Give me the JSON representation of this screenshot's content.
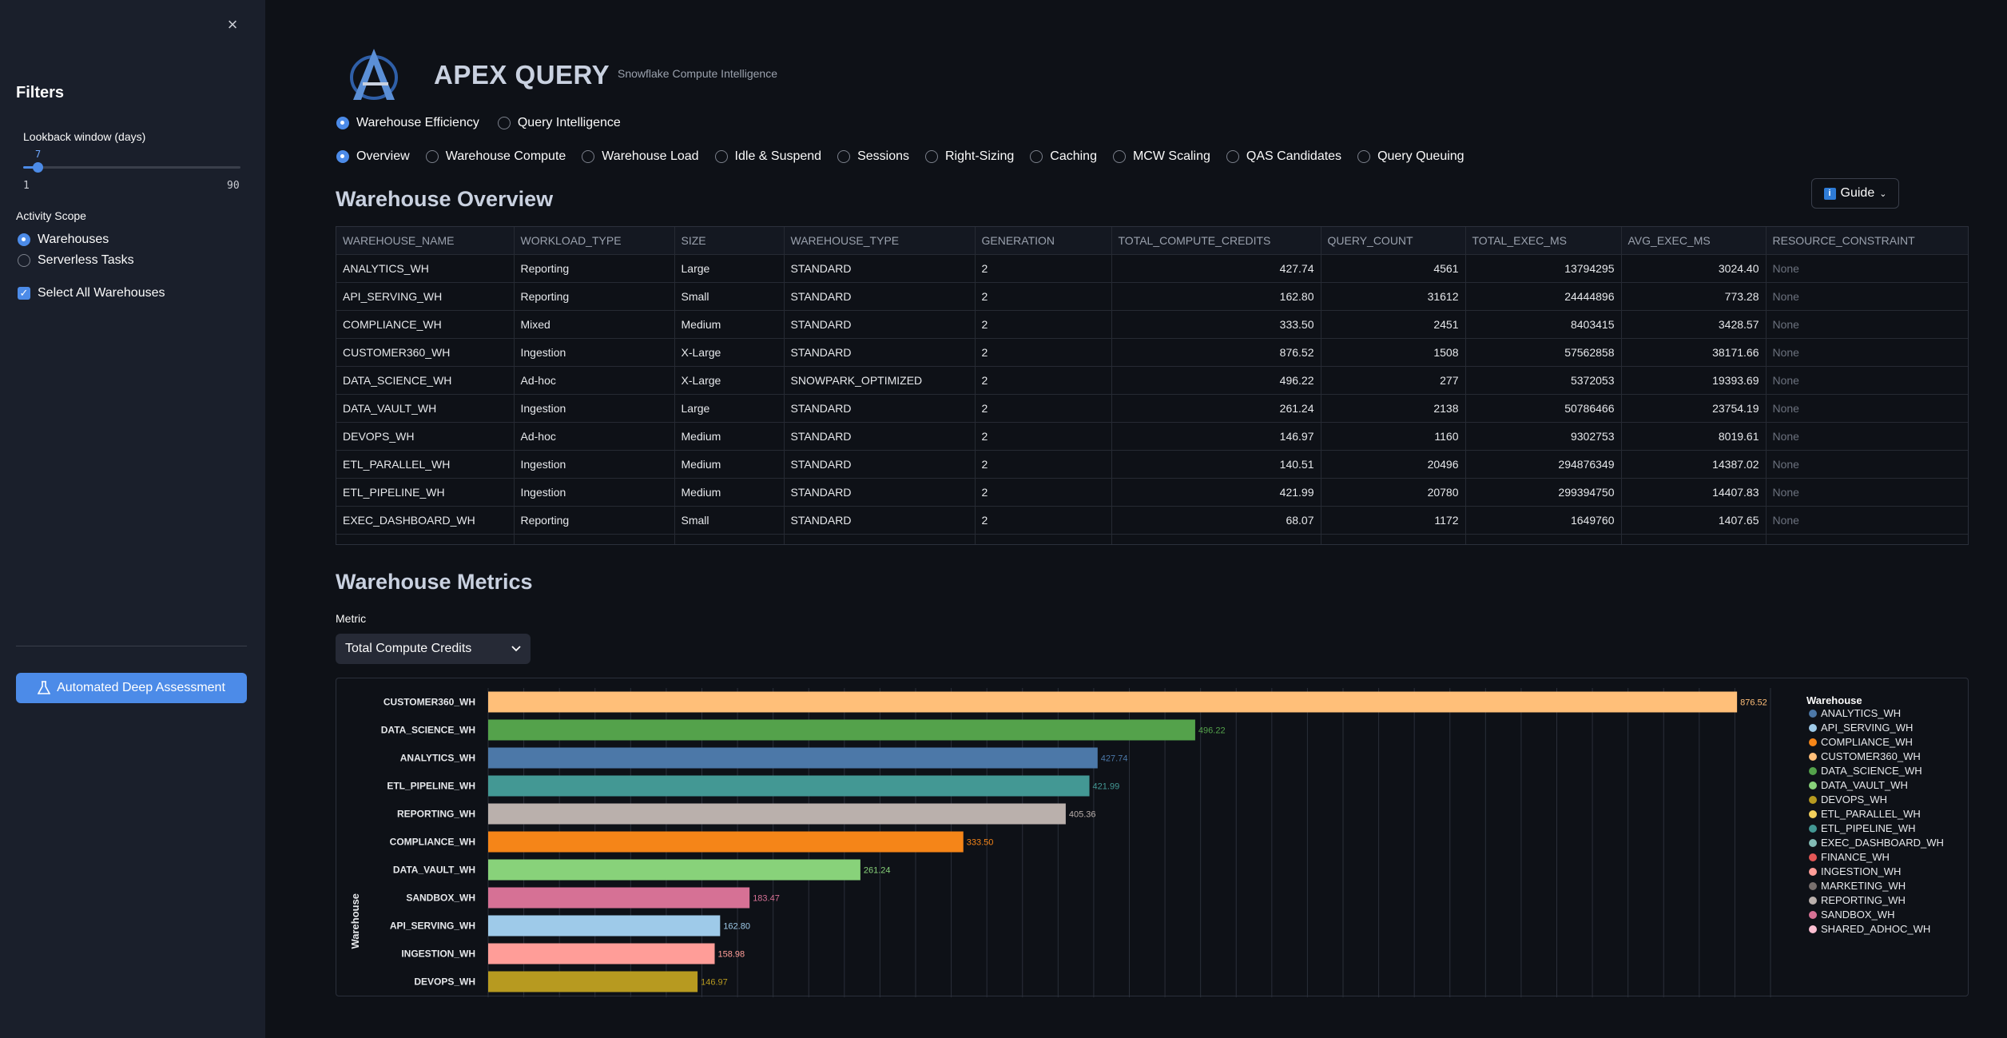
{
  "sidebar": {
    "close_icon": "×",
    "filters_title": "Filters",
    "lookback": {
      "label": "Lookback window (days)",
      "value": "7",
      "min": "1",
      "max": "90",
      "fraction": 0.067
    },
    "activity_scope": {
      "label": "Activity Scope",
      "options": [
        {
          "label": "Warehouses",
          "selected": true
        },
        {
          "label": "Serverless Tasks",
          "selected": false
        }
      ]
    },
    "select_all": {
      "label": "Select All Warehouses",
      "checked": true
    },
    "deep_assessment_button": "Automated Deep Assessment"
  },
  "header": {
    "title": "APEX QUERY",
    "subtitle": "Snowflake Compute Intelligence"
  },
  "main_tabs": [
    {
      "label": "Warehouse Efficiency",
      "selected": true
    },
    {
      "label": "Query Intelligence",
      "selected": false
    }
  ],
  "sub_tabs": [
    {
      "label": "Overview",
      "selected": true
    },
    {
      "label": "Warehouse Compute",
      "selected": false
    },
    {
      "label": "Warehouse Load",
      "selected": false
    },
    {
      "label": "Idle & Suspend",
      "selected": false
    },
    {
      "label": "Sessions",
      "selected": false
    },
    {
      "label": "Right-Sizing",
      "selected": false
    },
    {
      "label": "Caching",
      "selected": false
    },
    {
      "label": "MCW Scaling",
      "selected": false
    },
    {
      "label": "QAS Candidates",
      "selected": false
    },
    {
      "label": "Query Queuing",
      "selected": false
    }
  ],
  "overview": {
    "title": "Warehouse Overview",
    "guide_label": "Guide",
    "guide_icon": "i",
    "columns": [
      "WAREHOUSE_NAME",
      "WORKLOAD_TYPE",
      "SIZE",
      "WAREHOUSE_TYPE",
      "GENERATION",
      "TOTAL_COMPUTE_CREDITS",
      "QUERY_COUNT",
      "TOTAL_EXEC_MS",
      "AVG_EXEC_MS",
      "RESOURCE_CONSTRAINT"
    ],
    "rows": [
      [
        "ANALYTICS_WH",
        "Reporting",
        "Large",
        "STANDARD",
        "2",
        "427.74",
        "4561",
        "13794295",
        "3024.40",
        "None"
      ],
      [
        "API_SERVING_WH",
        "Reporting",
        "Small",
        "STANDARD",
        "2",
        "162.80",
        "31612",
        "24444896",
        "773.28",
        "None"
      ],
      [
        "COMPLIANCE_WH",
        "Mixed",
        "Medium",
        "STANDARD",
        "2",
        "333.50",
        "2451",
        "8403415",
        "3428.57",
        "None"
      ],
      [
        "CUSTOMER360_WH",
        "Ingestion",
        "X-Large",
        "STANDARD",
        "2",
        "876.52",
        "1508",
        "57562858",
        "38171.66",
        "None"
      ],
      [
        "DATA_SCIENCE_WH",
        "Ad-hoc",
        "X-Large",
        "SNOWPARK_OPTIMIZED",
        "2",
        "496.22",
        "277",
        "5372053",
        "19393.69",
        "None"
      ],
      [
        "DATA_VAULT_WH",
        "Ingestion",
        "Large",
        "STANDARD",
        "2",
        "261.24",
        "2138",
        "50786466",
        "23754.19",
        "None"
      ],
      [
        "DEVOPS_WH",
        "Ad-hoc",
        "Medium",
        "STANDARD",
        "2",
        "146.97",
        "1160",
        "9302753",
        "8019.61",
        "None"
      ],
      [
        "ETL_PARALLEL_WH",
        "Ingestion",
        "Medium",
        "STANDARD",
        "2",
        "140.51",
        "20496",
        "294876349",
        "14387.02",
        "None"
      ],
      [
        "ETL_PIPELINE_WH",
        "Ingestion",
        "Medium",
        "STANDARD",
        "2",
        "421.99",
        "20780",
        "299394750",
        "14407.83",
        "None"
      ],
      [
        "EXEC_DASHBOARD_WH",
        "Reporting",
        "Small",
        "STANDARD",
        "2",
        "68.07",
        "1172",
        "1649760",
        "1407.65",
        "None"
      ]
    ]
  },
  "metrics": {
    "title": "Warehouse Metrics",
    "metric_label": "Metric",
    "selected_metric": "Total Compute Credits",
    "chevron_icon": "chevron-down-icon"
  },
  "chart_data": {
    "type": "bar",
    "orientation": "horizontal",
    "ylabel": "Warehouse",
    "xlim": [
      0,
      900
    ],
    "grid": true,
    "legend_title": "Warehouse",
    "legend_position": "right",
    "bars": [
      {
        "category": "CUSTOMER360_WH",
        "value": 876.52,
        "label": "876.52",
        "color": "#ffbf79"
      },
      {
        "category": "DATA_SCIENCE_WH",
        "value": 496.22,
        "label": "496.22",
        "color": "#54a24b"
      },
      {
        "category": "ANALYTICS_WH",
        "value": 427.74,
        "label": "427.74",
        "color": "#4c78a8"
      },
      {
        "category": "ETL_PIPELINE_WH",
        "value": 421.99,
        "label": "421.99",
        "color": "#439894"
      },
      {
        "category": "REPORTING_WH",
        "value": 405.36,
        "label": "405.36",
        "color": "#bab0ac"
      },
      {
        "category": "COMPLIANCE_WH",
        "value": 333.5,
        "label": "333.50",
        "color": "#f58518"
      },
      {
        "category": "DATA_VAULT_WH",
        "value": 261.24,
        "label": "261.24",
        "color": "#88d27a"
      },
      {
        "category": "SANDBOX_WH",
        "value": 183.47,
        "label": "183.47",
        "color": "#d67195"
      },
      {
        "category": "API_SERVING_WH",
        "value": 162.8,
        "label": "162.80",
        "color": "#9ecae9"
      },
      {
        "category": "INGESTION_WH",
        "value": 158.98,
        "label": "158.98",
        "color": "#ff9d98"
      },
      {
        "category": "DEVOPS_WH",
        "value": 146.97,
        "label": "146.97",
        "color": "#b79a20"
      }
    ],
    "legend": [
      {
        "name": "ANALYTICS_WH",
        "color": "#4c78a8"
      },
      {
        "name": "API_SERVING_WH",
        "color": "#9ecae9"
      },
      {
        "name": "COMPLIANCE_WH",
        "color": "#f58518"
      },
      {
        "name": "CUSTOMER360_WH",
        "color": "#ffbf79"
      },
      {
        "name": "DATA_SCIENCE_WH",
        "color": "#54a24b"
      },
      {
        "name": "DATA_VAULT_WH",
        "color": "#88d27a"
      },
      {
        "name": "DEVOPS_WH",
        "color": "#b79a20"
      },
      {
        "name": "ETL_PARALLEL_WH",
        "color": "#f2cf5b"
      },
      {
        "name": "ETL_PIPELINE_WH",
        "color": "#439894"
      },
      {
        "name": "EXEC_DASHBOARD_WH",
        "color": "#83bcb6"
      },
      {
        "name": "FINANCE_WH",
        "color": "#e45756"
      },
      {
        "name": "INGESTION_WH",
        "color": "#ff9d98"
      },
      {
        "name": "MARKETING_WH",
        "color": "#79706e"
      },
      {
        "name": "REPORTING_WH",
        "color": "#bab0ac"
      },
      {
        "name": "SANDBOX_WH",
        "color": "#d67195"
      },
      {
        "name": "SHARED_ADHOC_WH",
        "color": "#fcbfd2"
      }
    ]
  }
}
